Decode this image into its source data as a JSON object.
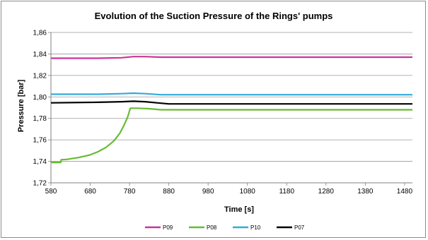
{
  "chart_data": {
    "type": "line",
    "title": "Evolution of the Suction Pressure of the Rings' pumps",
    "xlabel": "Time [s]",
    "ylabel": "Pressure [bar]",
    "xlim": [
      580,
      1500
    ],
    "ylim": [
      1.72,
      1.86
    ],
    "x_ticks": [
      580,
      680,
      780,
      880,
      980,
      1080,
      1180,
      1280,
      1380,
      1480
    ],
    "y_ticks": [
      1.72,
      1.74,
      1.76,
      1.78,
      1.8,
      1.82,
      1.84,
      1.86
    ],
    "x_tick_labels": [
      "580",
      "680",
      "780",
      "880",
      "980",
      "1080",
      "1180",
      "1280",
      "1380",
      "1480"
    ],
    "y_tick_labels": [
      "1,72",
      "1,74",
      "1,76",
      "1,78",
      "1,80",
      "1,82",
      "1,84",
      "1,86"
    ],
    "grid": "horizontal",
    "legend_position": "bottom",
    "series": [
      {
        "name": "P09",
        "color": "#cc3399",
        "points": [
          [
            580,
            1.836
          ],
          [
            700,
            1.836
          ],
          [
            760,
            1.8365
          ],
          [
            790,
            1.8375
          ],
          [
            820,
            1.8375
          ],
          [
            860,
            1.837
          ],
          [
            1000,
            1.837
          ],
          [
            1500,
            1.837
          ]
        ]
      },
      {
        "name": "P08",
        "color": "#66bb33",
        "points": [
          [
            580,
            1.739
          ],
          [
            605,
            1.739
          ],
          [
            606,
            1.7415
          ],
          [
            620,
            1.7418
          ],
          [
            650,
            1.7435
          ],
          [
            680,
            1.746
          ],
          [
            700,
            1.749
          ],
          [
            720,
            1.753
          ],
          [
            740,
            1.759
          ],
          [
            755,
            1.766
          ],
          [
            765,
            1.773
          ],
          [
            775,
            1.781
          ],
          [
            782,
            1.7895
          ],
          [
            800,
            1.7895
          ],
          [
            830,
            1.789
          ],
          [
            860,
            1.788
          ],
          [
            1000,
            1.788
          ],
          [
            1500,
            1.788
          ]
        ]
      },
      {
        "name": "P10",
        "color": "#33aadd",
        "points": [
          [
            580,
            1.8025
          ],
          [
            700,
            1.8025
          ],
          [
            760,
            1.803
          ],
          [
            790,
            1.8035
          ],
          [
            820,
            1.803
          ],
          [
            860,
            1.802
          ],
          [
            1000,
            1.802
          ],
          [
            1500,
            1.802
          ]
        ]
      },
      {
        "name": "P07",
        "color": "#000000",
        "points": [
          [
            580,
            1.7945
          ],
          [
            700,
            1.795
          ],
          [
            760,
            1.7955
          ],
          [
            790,
            1.796
          ],
          [
            820,
            1.7955
          ],
          [
            850,
            1.7945
          ],
          [
            880,
            1.7935
          ],
          [
            1000,
            1.7935
          ],
          [
            1500,
            1.7935
          ]
        ]
      }
    ]
  }
}
